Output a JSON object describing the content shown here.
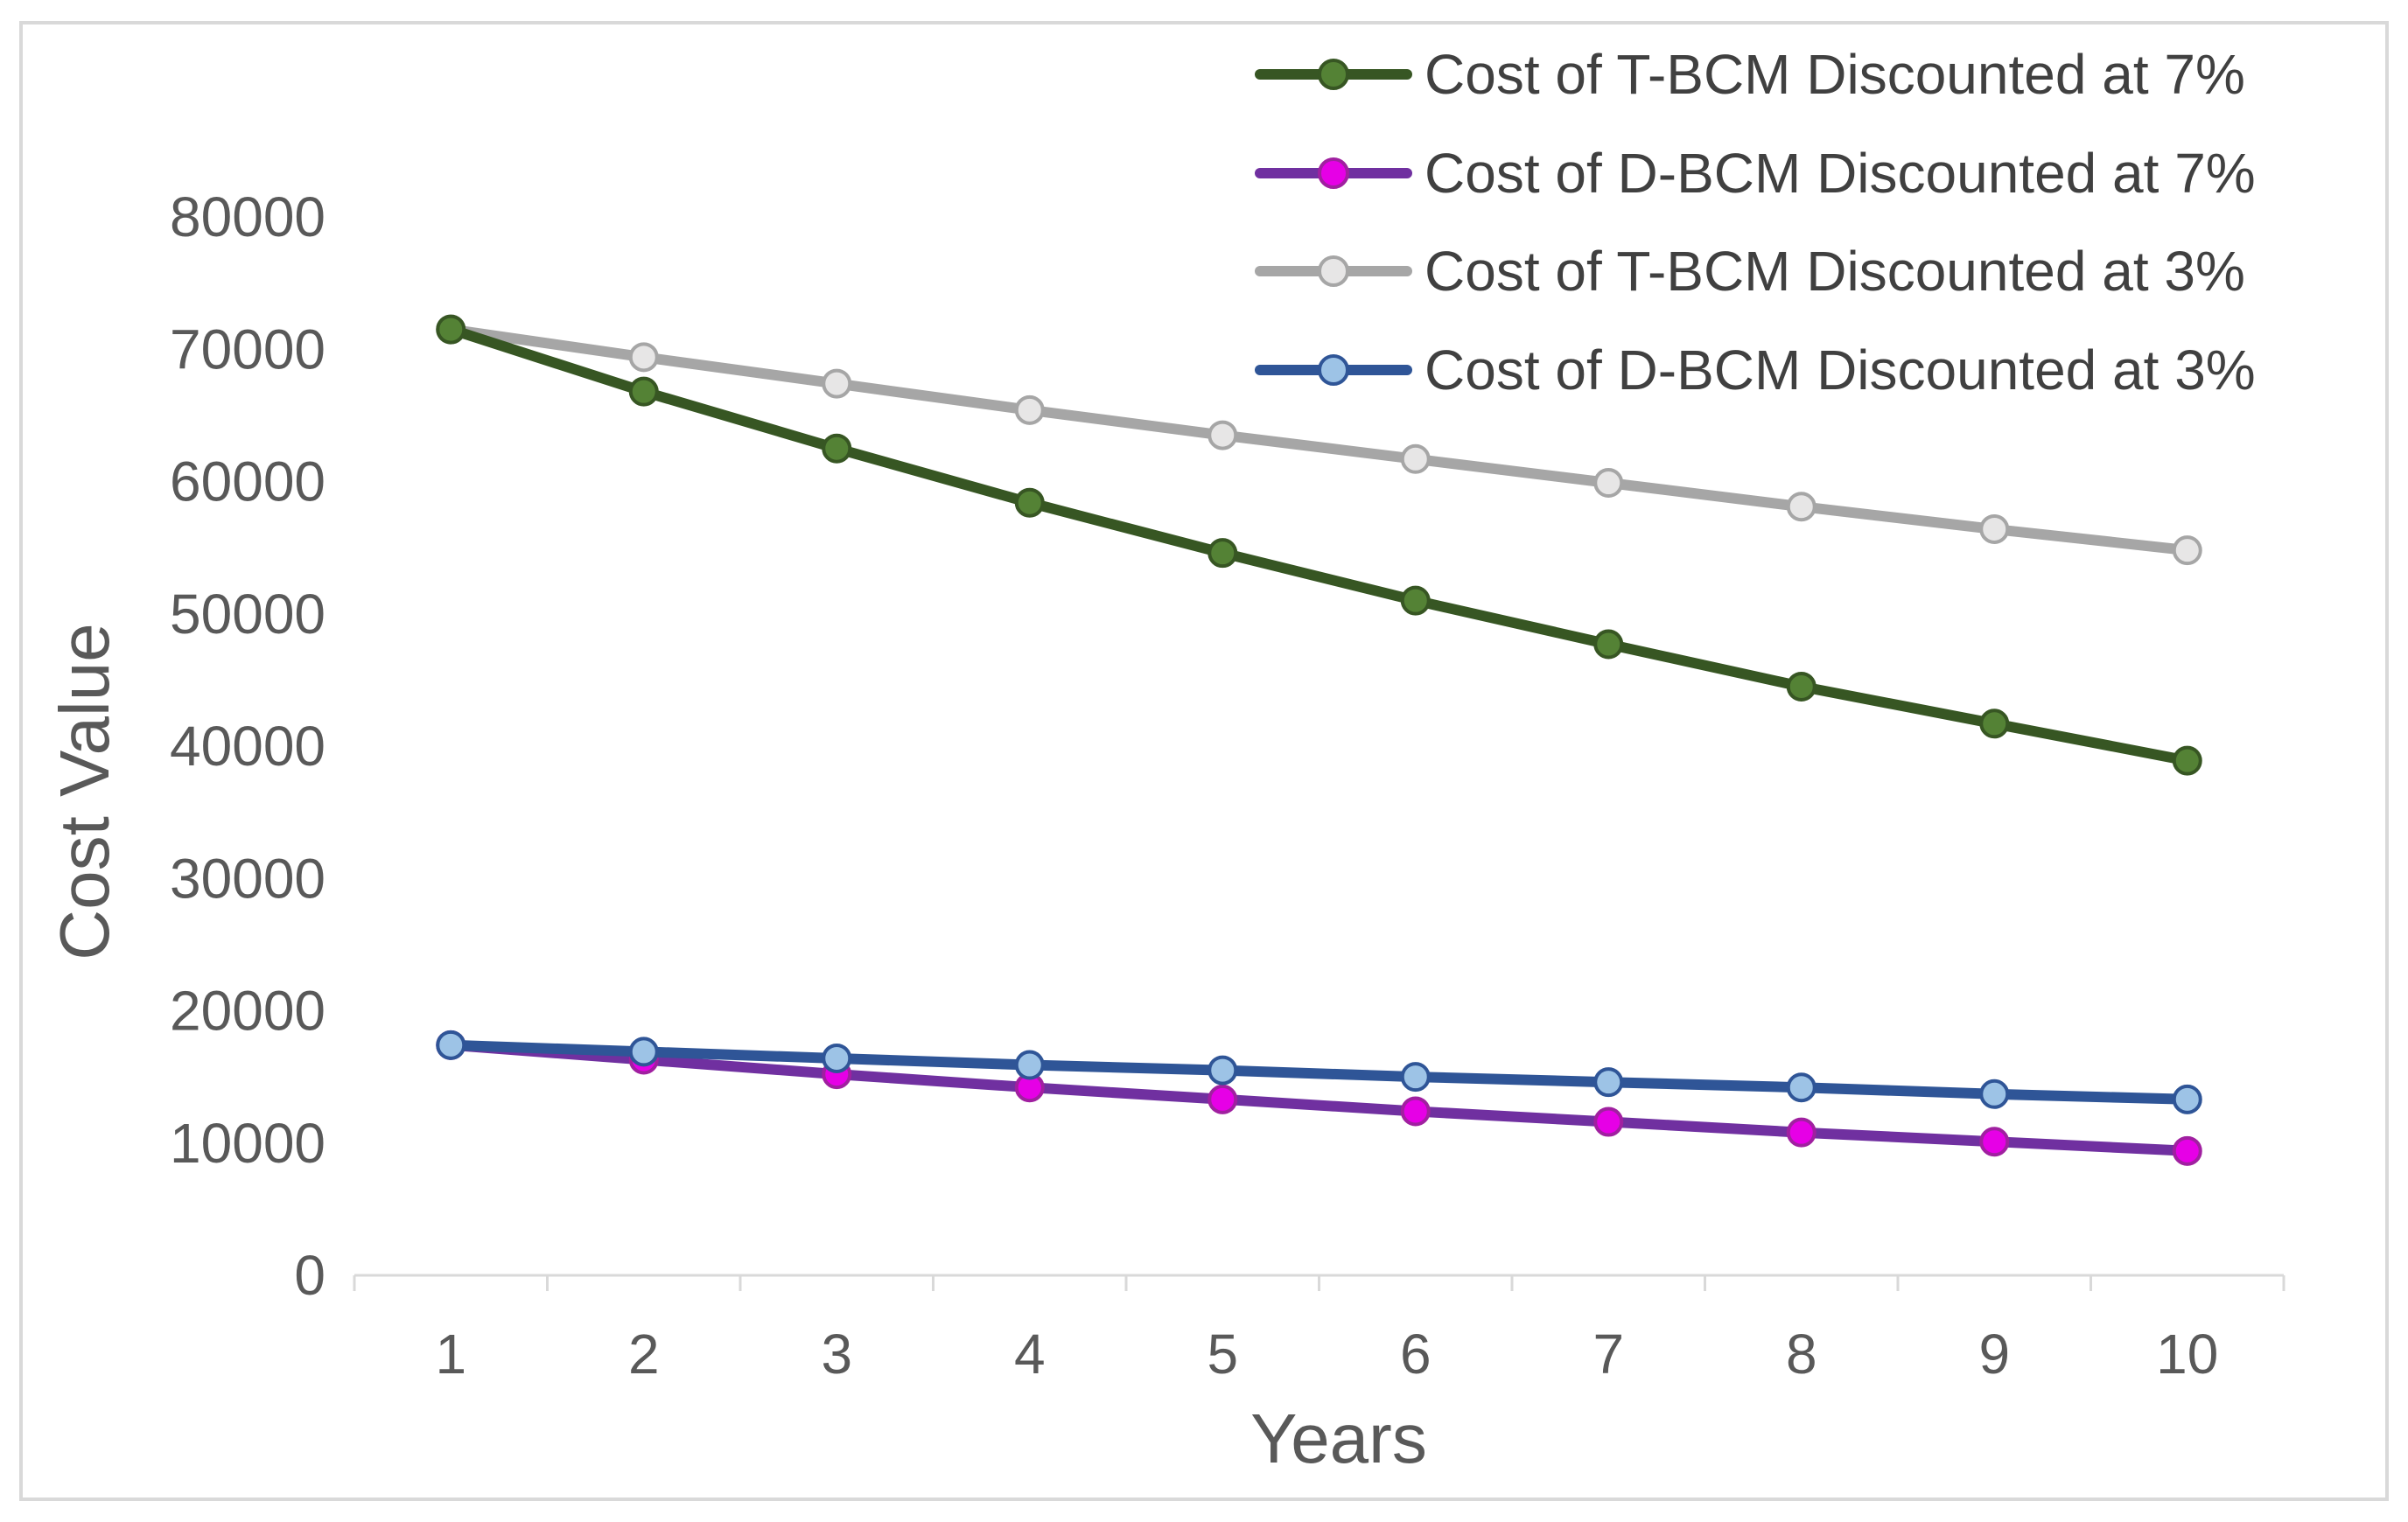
{
  "chart_data": {
    "type": "line",
    "title": "",
    "xlabel": "Years",
    "ylabel": "Cost Value",
    "x": [
      1,
      2,
      3,
      4,
      5,
      6,
      7,
      8,
      9,
      10
    ],
    "x_tick_labels": [
      "1",
      "2",
      "3",
      "4",
      "5",
      "6",
      "7",
      "8",
      "9",
      "10"
    ],
    "ylim": [
      0,
      80000
    ],
    "y_ticks": [
      0,
      10000,
      20000,
      30000,
      40000,
      50000,
      60000,
      70000,
      80000
    ],
    "y_tick_labels": [
      "0",
      "10000",
      "20000",
      "30000",
      "40000",
      "50000",
      "60000",
      "70000",
      "80000"
    ],
    "grid": false,
    "legend_position": "top-right",
    "series": [
      {
        "name": "Cost of T-BCM Discounted at 7%",
        "line_color": "#375623",
        "marker_fill": "#548235",
        "marker_stroke": "#375623",
        "values": [
          71500,
          66800,
          62500,
          58400,
          54600,
          51000,
          47700,
          44500,
          41700,
          38900
        ]
      },
      {
        "name": "Cost of D-BCM Discounted at 7%",
        "line_color": "#7030a0",
        "marker_fill": "#e600e6",
        "marker_stroke": "#a020a0",
        "values": [
          17400,
          16300,
          15200,
          14200,
          13300,
          12400,
          11600,
          10800,
          10100,
          9400
        ]
      },
      {
        "name": "Cost of T-BCM Discounted at 3%",
        "line_color": "#a6a6a6",
        "marker_fill": "#e7e6e6",
        "marker_stroke": "#a6a6a6",
        "values": [
          71500,
          69400,
          67400,
          65400,
          63500,
          61700,
          59900,
          58100,
          56400,
          54800
        ]
      },
      {
        "name": "Cost of D-BCM Discounted at 3%",
        "line_color": "#2f5597",
        "marker_fill": "#9dc3e6",
        "marker_stroke": "#2f5597",
        "values": [
          17400,
          16900,
          16400,
          15900,
          15500,
          15000,
          14600,
          14200,
          13700,
          13300
        ]
      }
    ]
  }
}
